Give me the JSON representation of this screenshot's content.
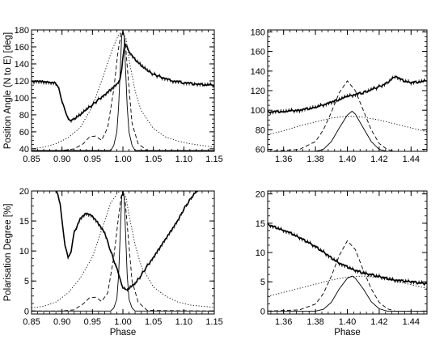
{
  "chart_data": [
    {
      "type": "line",
      "xlabel": "",
      "ylabel": "Position Angle (N to E) [deg]",
      "xlim": [
        0.85,
        1.15
      ],
      "ylim": [
        37,
        180
      ],
      "x_ticks": [
        0.85,
        0.9,
        0.95,
        1.0,
        1.05,
        1.1,
        1.15
      ],
      "x_tick_labels": [
        "0.85",
        "0.90",
        "0.95",
        "1.00",
        "1.05",
        "1.10",
        "1.15"
      ],
      "y_ticks": [
        40,
        60,
        80,
        100,
        120,
        140,
        160,
        180
      ],
      "y_tick_labels": [
        "40",
        "60",
        "80",
        "100",
        "120",
        "140",
        "160",
        "180"
      ],
      "series": [
        {
          "style": "data-errorbars",
          "color": "#000000",
          "x": [
            0.85,
            0.86,
            0.87,
            0.88,
            0.89,
            0.895,
            0.9,
            0.905,
            0.91,
            0.915,
            0.92,
            0.93,
            0.94,
            0.95,
            0.96,
            0.97,
            0.98,
            0.99,
            0.995,
            0.998,
            1.0,
            1.003,
            1.007,
            1.012,
            1.02,
            1.03,
            1.04,
            1.05,
            1.06,
            1.08,
            1.1,
            1.12,
            1.15
          ],
          "y": [
            119,
            120,
            119,
            118,
            117,
            110,
            96,
            84,
            76,
            74,
            75,
            80,
            86,
            92,
            98,
            104,
            110,
            116,
            122,
            132,
            148,
            163,
            160,
            153,
            145,
            138,
            132,
            128,
            125,
            120,
            118,
            116,
            115
          ]
        },
        {
          "style": "dotted",
          "color": "#000000",
          "x": [
            0.85,
            0.87,
            0.89,
            0.91,
            0.93,
            0.95,
            0.96,
            0.97,
            0.98,
            0.99,
            0.995,
            1.0,
            1.005,
            1.01,
            1.02,
            1.03,
            1.05,
            1.07,
            1.09,
            1.11,
            1.13,
            1.15
          ],
          "y": [
            40,
            42,
            46,
            53,
            65,
            90,
            110,
            130,
            152,
            170,
            176,
            178,
            170,
            145,
            108,
            85,
            64,
            54,
            49,
            46,
            44,
            42
          ]
        },
        {
          "style": "dashed",
          "color": "#000000",
          "x": [
            0.85,
            0.9,
            0.92,
            0.935,
            0.945,
            0.955,
            0.965,
            0.975,
            0.985,
            0.992,
            0.997,
            1.0,
            1.004,
            1.009,
            1.015,
            1.025,
            1.04,
            1.15
          ],
          "y": [
            38,
            38,
            40,
            46,
            54,
            55,
            50,
            65,
            110,
            155,
            176,
            178,
            165,
            120,
            70,
            46,
            38,
            38
          ]
        },
        {
          "style": "solid",
          "color": "#000000",
          "x": [
            0.85,
            0.98,
            0.985,
            0.99,
            0.993,
            0.996,
            0.998,
            1.0,
            1.002,
            1.004,
            1.007,
            1.01,
            1.015,
            1.02,
            1.15
          ],
          "y": [
            38,
            38,
            44,
            60,
            90,
            140,
            172,
            180,
            172,
            140,
            90,
            60,
            44,
            38,
            38
          ]
        }
      ]
    },
    {
      "type": "line",
      "xlabel": "",
      "ylabel": "",
      "xlim": [
        1.35,
        1.45
      ],
      "ylim": [
        58,
        182
      ],
      "x_ticks": [
        1.36,
        1.38,
        1.4,
        1.42,
        1.44
      ],
      "x_tick_labels": [
        "1.36",
        "1.38",
        "1.40",
        "1.42",
        "1.44"
      ],
      "y_ticks": [
        60,
        80,
        100,
        120,
        140,
        160,
        180
      ],
      "y_tick_labels": [
        "60",
        "80",
        "100",
        "120",
        "140",
        "160",
        "180"
      ],
      "series": [
        {
          "style": "data-errorbars",
          "color": "#000000",
          "x": [
            1.35,
            1.36,
            1.37,
            1.38,
            1.39,
            1.4,
            1.41,
            1.42,
            1.425,
            1.43,
            1.435,
            1.44,
            1.45
          ],
          "y": [
            98,
            99,
            100,
            103,
            108,
            114,
            118,
            124,
            128,
            135,
            130,
            128,
            130
          ]
        },
        {
          "style": "dotted",
          "color": "#000000",
          "x": [
            1.35,
            1.36,
            1.37,
            1.38,
            1.39,
            1.4,
            1.41,
            1.42,
            1.43,
            1.44,
            1.45
          ],
          "y": [
            75,
            79,
            84,
            88,
            92,
            94,
            93,
            90,
            86,
            82,
            78
          ]
        },
        {
          "style": "dashed",
          "color": "#000000",
          "x": [
            1.35,
            1.37,
            1.38,
            1.385,
            1.39,
            1.395,
            1.4,
            1.405,
            1.41,
            1.415,
            1.42,
            1.425,
            1.43,
            1.45
          ],
          "y": [
            58,
            60,
            68,
            80,
            98,
            118,
            130,
            120,
            100,
            80,
            66,
            60,
            58,
            58
          ]
        },
        {
          "style": "solid",
          "color": "#000000",
          "x": [
            1.35,
            1.38,
            1.385,
            1.39,
            1.395,
            1.4,
            1.403,
            1.405,
            1.41,
            1.415,
            1.42,
            1.425,
            1.45
          ],
          "y": [
            58,
            58,
            60,
            68,
            82,
            95,
            99,
            96,
            82,
            68,
            60,
            58,
            58
          ]
        }
      ]
    },
    {
      "type": "line",
      "xlabel": "Phase",
      "ylabel": "Polarisation Degree [%]",
      "xlim": [
        0.85,
        1.15
      ],
      "ylim": [
        -0.5,
        20
      ],
      "x_ticks": [
        0.85,
        0.9,
        0.95,
        1.0,
        1.05,
        1.1,
        1.15
      ],
      "x_tick_labels": [
        "0.85",
        "0.90",
        "0.95",
        "1.00",
        "1.05",
        "1.10",
        "1.15"
      ],
      "y_ticks": [
        0,
        5,
        10,
        15,
        20
      ],
      "y_tick_labels": [
        "0",
        "5",
        "10",
        "15",
        "20"
      ],
      "series": [
        {
          "style": "data-errorbars",
          "color": "#000000",
          "x": [
            0.89,
            0.893,
            0.897,
            0.9,
            0.905,
            0.91,
            0.915,
            0.92,
            0.93,
            0.94,
            0.95,
            0.96,
            0.97,
            0.98,
            0.99,
            0.995,
            1.0,
            1.005,
            1.01,
            1.02,
            1.03,
            1.04,
            1.05,
            1.06,
            1.07,
            1.08,
            1.09,
            1.1,
            1.11,
            1.12,
            1.13
          ],
          "y": [
            20,
            19.5,
            18,
            15,
            11,
            8.8,
            10,
            13,
            15.5,
            16.3,
            15.8,
            14.5,
            13,
            10,
            7,
            5.5,
            4,
            3.5,
            3.8,
            4.5,
            6,
            7.5,
            9,
            10.5,
            12,
            13.5,
            15,
            17,
            18.5,
            20,
            20.5
          ]
        },
        {
          "style": "dotted",
          "color": "#000000",
          "x": [
            0.85,
            0.87,
            0.89,
            0.91,
            0.93,
            0.95,
            0.96,
            0.97,
            0.98,
            0.99,
            0.995,
            1.0,
            1.005,
            1.01,
            1.02,
            1.03,
            1.05,
            1.07,
            1.09,
            1.11,
            1.13,
            1.15
          ],
          "y": [
            0.5,
            0.8,
            1.5,
            3,
            5.5,
            9,
            12,
            15,
            18,
            19.5,
            20,
            20,
            19,
            16,
            11,
            7.5,
            4,
            2.5,
            1.5,
            1,
            0.8,
            0.6
          ]
        },
        {
          "style": "dashed",
          "color": "#000000",
          "x": [
            0.85,
            0.9,
            0.92,
            0.935,
            0.945,
            0.955,
            0.965,
            0.975,
            0.985,
            0.992,
            0.997,
            1.0,
            1.004,
            1.009,
            1.015,
            1.025,
            1.04,
            1.15
          ],
          "y": [
            0,
            0,
            0.2,
            1.2,
            2.2,
            2.3,
            1.6,
            3,
            9,
            15,
            19,
            20,
            18,
            12,
            5,
            1.5,
            0.1,
            0
          ]
        },
        {
          "style": "solid",
          "color": "#000000",
          "x": [
            0.85,
            0.98,
            0.985,
            0.99,
            0.993,
            0.996,
            0.998,
            1.0,
            1.002,
            1.004,
            1.007,
            1.01,
            1.015,
            1.02,
            1.15
          ],
          "y": [
            0,
            0,
            0.5,
            2,
            6,
            14,
            19,
            20,
            19,
            14,
            6,
            2,
            0.5,
            0,
            0
          ]
        }
      ]
    },
    {
      "type": "line",
      "xlabel": "Phase",
      "ylabel": "",
      "xlim": [
        1.35,
        1.45
      ],
      "ylim": [
        -0.5,
        20.5
      ],
      "x_ticks": [
        1.36,
        1.38,
        1.4,
        1.42,
        1.44
      ],
      "x_tick_labels": [
        "1.36",
        "1.38",
        "1.40",
        "1.42",
        "1.44"
      ],
      "y_ticks": [
        0,
        5,
        10,
        15,
        20
      ],
      "y_tick_labels": [
        "0",
        "5",
        "10",
        "15",
        "20"
      ],
      "series": [
        {
          "style": "data-errorbars",
          "color": "#000000",
          "x": [
            1.35,
            1.355,
            1.36,
            1.365,
            1.37,
            1.375,
            1.38,
            1.385,
            1.39,
            1.395,
            1.4,
            1.405,
            1.41,
            1.415,
            1.42,
            1.425,
            1.43,
            1.435,
            1.44,
            1.445,
            1.45
          ],
          "y": [
            14.8,
            14.3,
            13.8,
            13.2,
            12.5,
            11.8,
            11.0,
            10.1,
            9.1,
            8.2,
            7.5,
            6.9,
            6.5,
            6.2,
            5.9,
            5.6,
            5.3,
            5.1,
            5.0,
            4.8,
            4.7
          ]
        },
        {
          "style": "dotted",
          "color": "#000000",
          "x": [
            1.35,
            1.36,
            1.37,
            1.38,
            1.39,
            1.4,
            1.41,
            1.42,
            1.43,
            1.44,
            1.45
          ],
          "y": [
            2.5,
            3.2,
            3.9,
            4.6,
            5.3,
            5.8,
            6.0,
            5.7,
            5.1,
            4.5,
            3.9
          ]
        },
        {
          "style": "dashed",
          "color": "#000000",
          "x": [
            1.35,
            1.37,
            1.38,
            1.385,
            1.39,
            1.395,
            1.4,
            1.405,
            1.41,
            1.415,
            1.42,
            1.425,
            1.43,
            1.45
          ],
          "y": [
            0,
            0.2,
            1.2,
            3,
            6,
            9.5,
            12,
            10.5,
            7,
            3.8,
            1.5,
            0.4,
            0,
            0
          ]
        },
        {
          "style": "solid",
          "color": "#000000",
          "x": [
            1.35,
            1.38,
            1.385,
            1.39,
            1.395,
            1.4,
            1.403,
            1.405,
            1.41,
            1.415,
            1.42,
            1.425,
            1.45
          ],
          "y": [
            0,
            0,
            0.3,
            1.5,
            3.8,
            5.6,
            6.0,
            5.6,
            3.8,
            1.6,
            0.4,
            0,
            0
          ]
        }
      ]
    }
  ]
}
